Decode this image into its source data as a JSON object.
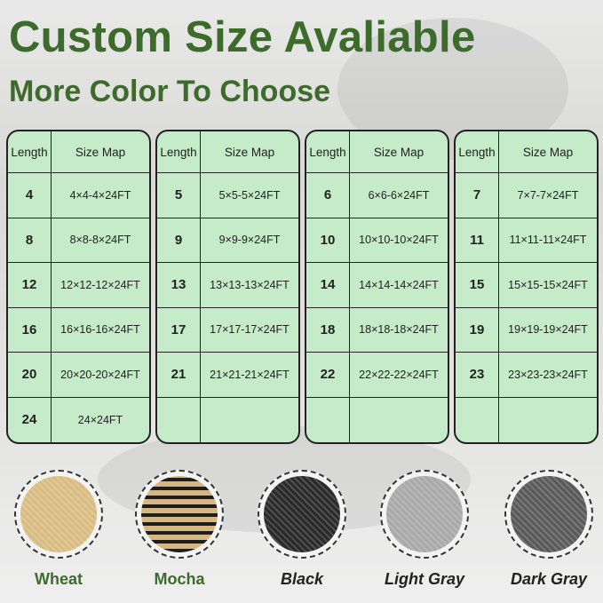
{
  "title": "Custom Size Avaliable",
  "subtitle": "More Color To Choose",
  "table_header": {
    "length": "Length",
    "size_map": "Size Map"
  },
  "tables": [
    [
      [
        "4",
        "4×4-4×24FT"
      ],
      [
        "8",
        "8×8-8×24FT"
      ],
      [
        "12",
        "12×12-12×24FT"
      ],
      [
        "16",
        "16×16-16×24FT"
      ],
      [
        "20",
        "20×20-20×24FT"
      ],
      [
        "24",
        "24×24FT"
      ]
    ],
    [
      [
        "5",
        "5×5-5×24FT"
      ],
      [
        "9",
        "9×9-9×24FT"
      ],
      [
        "13",
        "13×13-13×24FT"
      ],
      [
        "17",
        "17×17-17×24FT"
      ],
      [
        "21",
        "21×21-21×24FT"
      ],
      [
        "",
        ""
      ]
    ],
    [
      [
        "6",
        "6×6-6×24FT"
      ],
      [
        "10",
        "10×10-10×24FT"
      ],
      [
        "14",
        "14×14-14×24FT"
      ],
      [
        "18",
        "18×18-18×24FT"
      ],
      [
        "22",
        "22×22-22×24FT"
      ],
      [
        "",
        ""
      ]
    ],
    [
      [
        "7",
        "7×7-7×24FT"
      ],
      [
        "11",
        "11×11-11×24FT"
      ],
      [
        "15",
        "15×15-15×24FT"
      ],
      [
        "19",
        "19×19-19×24FT"
      ],
      [
        "23",
        "23×23-23×24FT"
      ],
      [
        "",
        ""
      ]
    ]
  ],
  "colors": [
    {
      "label": "Wheat",
      "swatch": "#d9bc82",
      "text": "#3d6b2c",
      "italic": false
    },
    {
      "label": "Mocha",
      "swatch": "#6b5a3c",
      "text": "#3d6b2c",
      "italic": false
    },
    {
      "label": "Black",
      "swatch": "#2a2a2a",
      "text": "#222222",
      "italic": true
    },
    {
      "label": "Light Gray",
      "swatch": "#a9a9a9",
      "text": "#222222",
      "italic": true
    },
    {
      "label": "Dark Gray",
      "swatch": "#5a5a5a",
      "text": "#222222",
      "italic": true
    }
  ],
  "accent": "#3d6b2c",
  "table_bg": "#c6ebc8"
}
